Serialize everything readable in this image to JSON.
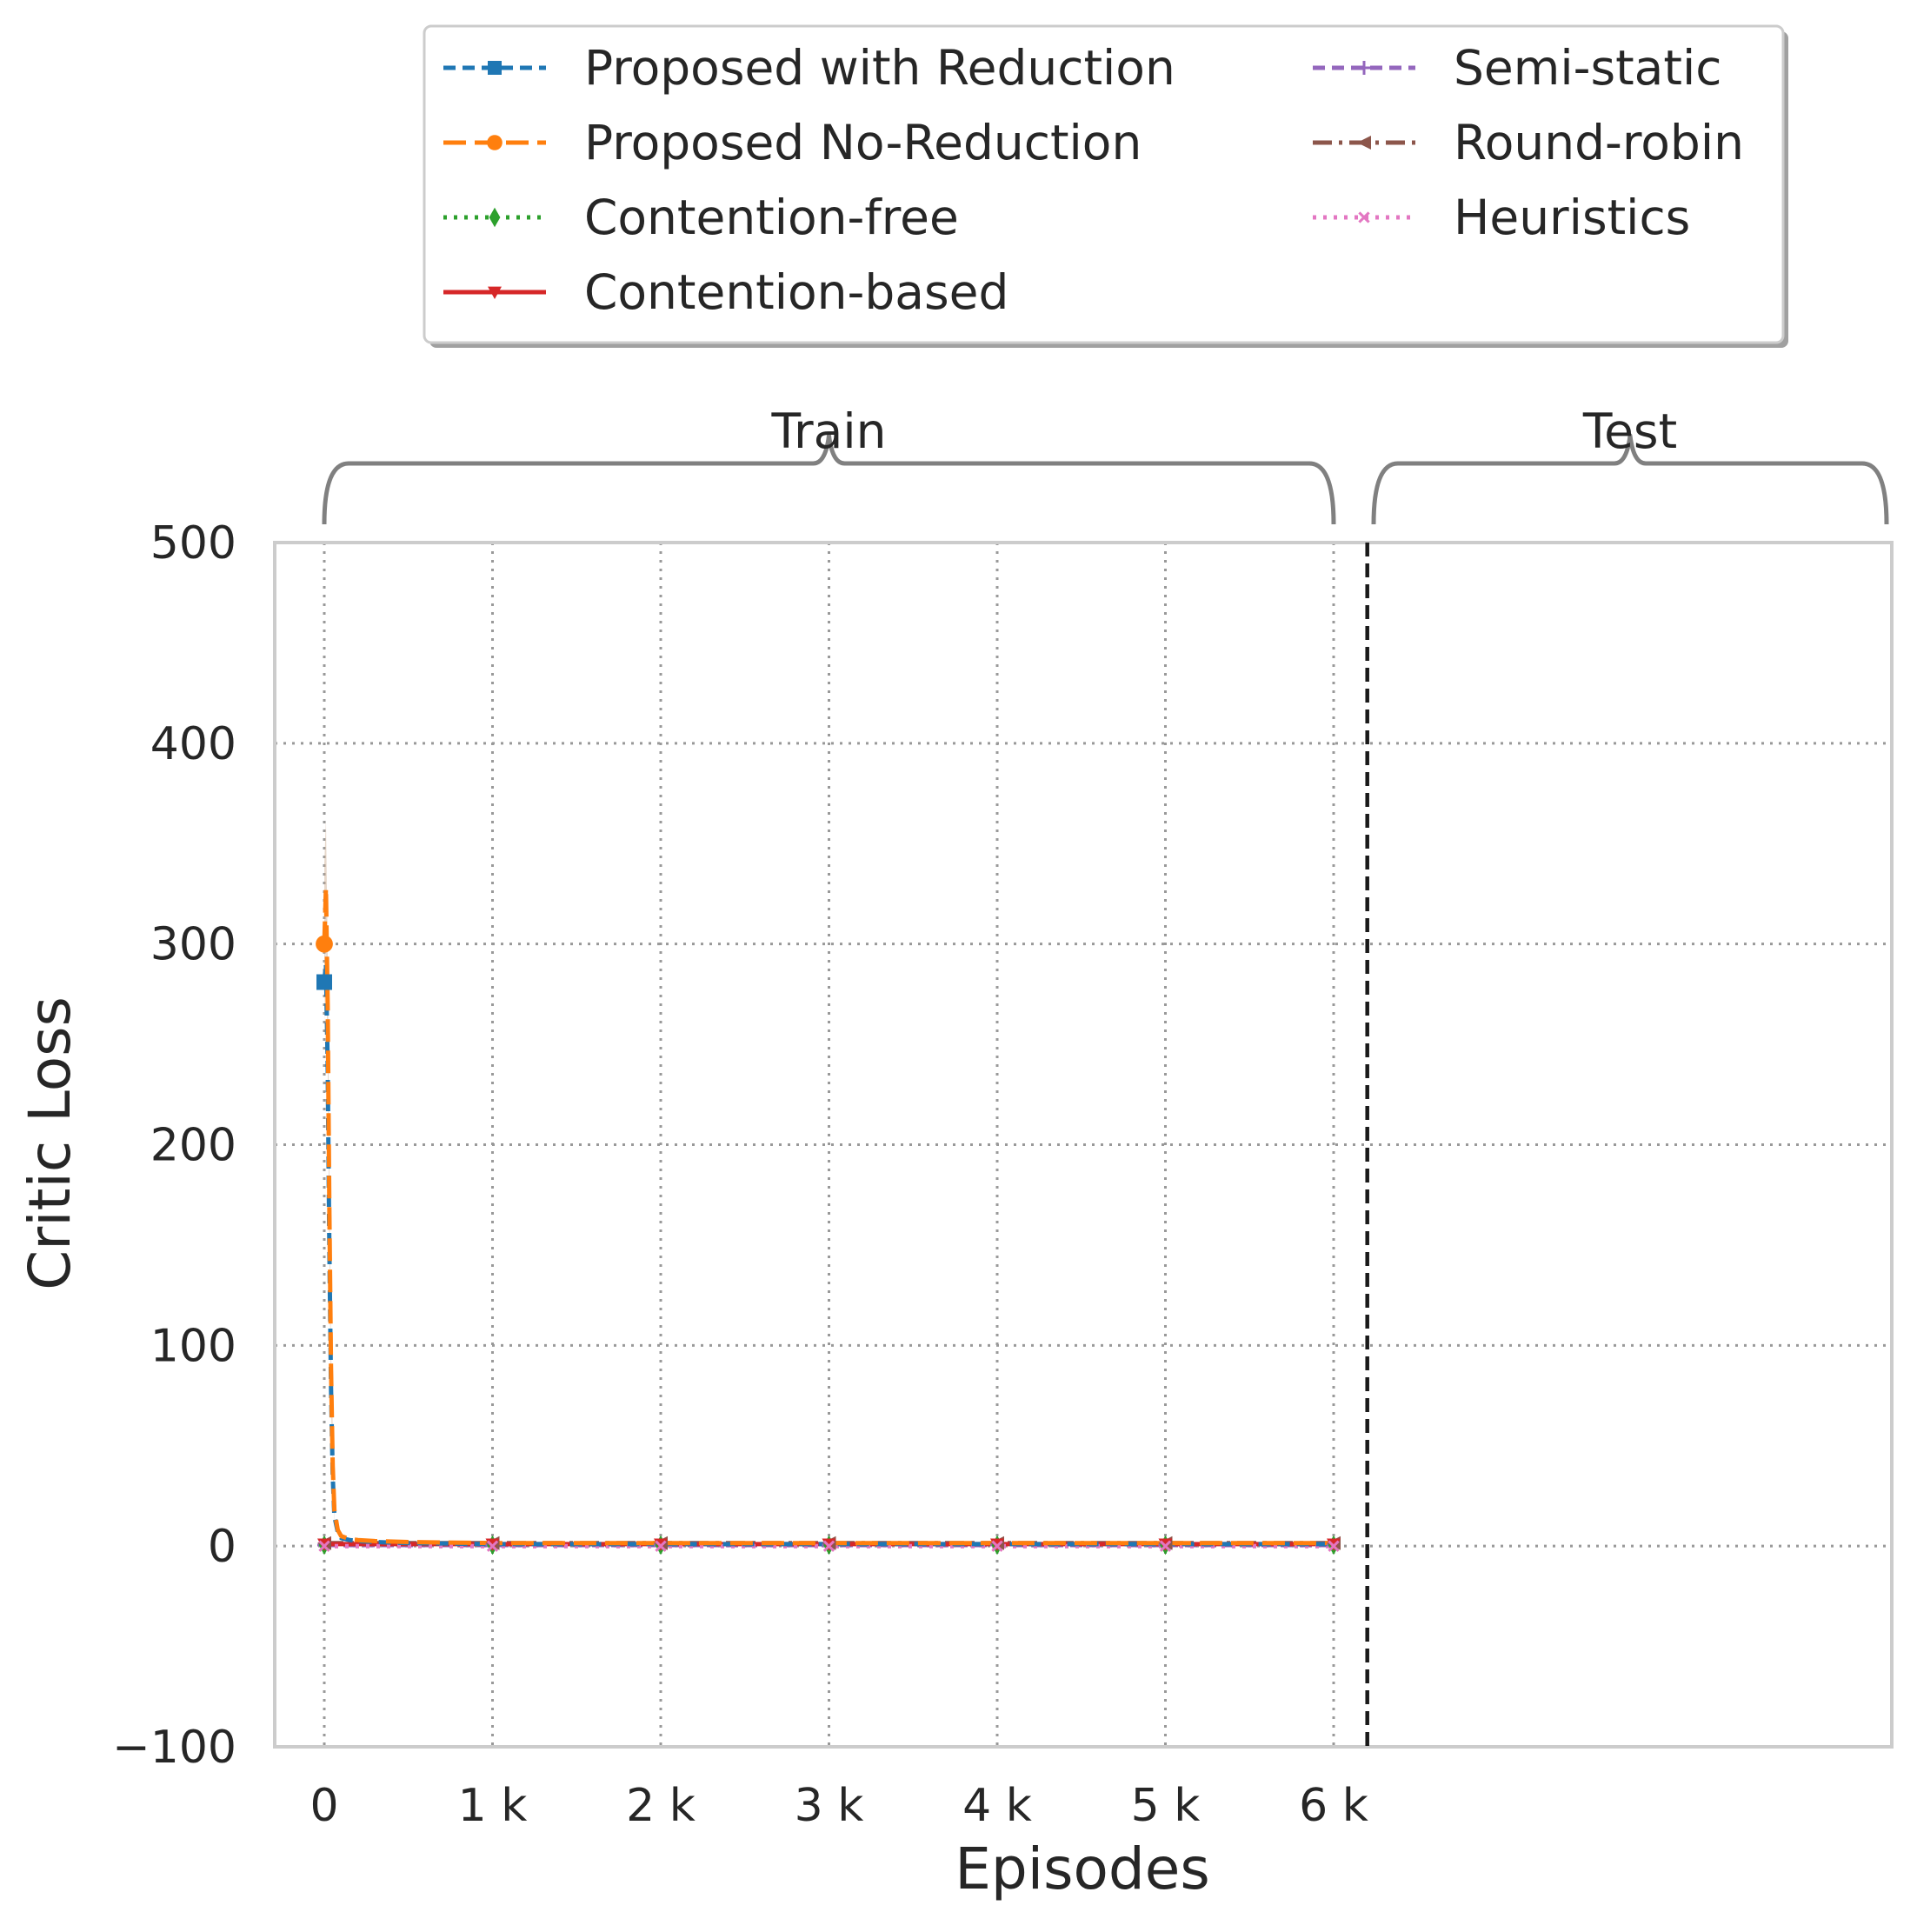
{
  "chart_data": {
    "type": "line",
    "xlabel": "Episodes",
    "ylabel": "Critic Loss",
    "xlim": [
      -300,
      9300
    ],
    "ylim": [
      -100,
      500
    ],
    "x_ticks": [
      {
        "value": 0,
        "label": "0"
      },
      {
        "value": 1000,
        "label": "1 k"
      },
      {
        "value": 2000,
        "label": "2 k"
      },
      {
        "value": 3000,
        "label": "3 k"
      },
      {
        "value": 4000,
        "label": "4 k"
      },
      {
        "value": 5000,
        "label": "5 k"
      },
      {
        "value": 6000,
        "label": "6 k"
      }
    ],
    "y_ticks": [
      {
        "value": 500,
        "label": "500"
      },
      {
        "value": 400,
        "label": "400"
      },
      {
        "value": 300,
        "label": "300"
      },
      {
        "value": 200,
        "label": "200"
      },
      {
        "value": 100,
        "label": "100"
      },
      {
        "value": 0,
        "label": "0"
      },
      {
        "value": -100,
        "label": "−100"
      }
    ],
    "grid": true,
    "legend_position": "top",
    "train_test_split": 6200,
    "sections": [
      {
        "label": "Train",
        "from": 0,
        "to": 6000
      },
      {
        "label": "Test",
        "from": 6250,
        "to": 9300
      }
    ],
    "series": [
      {
        "name": "Proposed with Reduction",
        "color": "#1f77b4",
        "dash": "dashed",
        "marker": "square",
        "x": [
          0,
          10,
          20,
          30,
          40,
          50,
          60,
          80,
          100,
          150,
          200,
          300,
          500,
          1000,
          2000,
          3000,
          4000,
          5000,
          6000
        ],
        "y": [
          281,
          290,
          240,
          150,
          80,
          35,
          15,
          7,
          4,
          3,
          2.5,
          2,
          1.5,
          1,
          1,
          1,
          1,
          1,
          1
        ]
      },
      {
        "name": "Proposed No-Reduction",
        "color": "#ff7f0e",
        "dash": "longdash",
        "marker": "circle",
        "x": [
          0,
          10,
          20,
          30,
          40,
          50,
          60,
          80,
          100,
          150,
          200,
          300,
          500,
          1000,
          2000,
          3000,
          4000,
          5000,
          6000
        ],
        "y": [
          300,
          328,
          270,
          170,
          90,
          40,
          18,
          8,
          5,
          3.5,
          3,
          2.5,
          2,
          1.5,
          1.5,
          1.5,
          1.5,
          1.5,
          1.5
        ]
      },
      {
        "name": "Contention-free",
        "color": "#2ca02c",
        "dash": "dotted",
        "marker": "diamond",
        "x": [
          0,
          1000,
          2000,
          3000,
          4000,
          5000,
          6000
        ],
        "y": [
          0.5,
          0.5,
          0.5,
          0.5,
          0.5,
          0.5,
          0.5
        ]
      },
      {
        "name": "Contention-based",
        "color": "#d62728",
        "dash": "solid",
        "marker": "triangle-down",
        "x": [
          0,
          1000,
          2000,
          3000,
          4000,
          5000,
          6000
        ],
        "y": [
          1,
          1,
          1,
          1,
          1,
          1,
          1
        ]
      },
      {
        "name": "Semi-static",
        "color": "#9467bd",
        "dash": "dashed",
        "marker": "plus",
        "x": [
          0,
          1000,
          2000,
          3000,
          4000,
          5000,
          6000
        ],
        "y": [
          0.5,
          0.5,
          0.5,
          0.5,
          0.5,
          0.5,
          0.5
        ]
      },
      {
        "name": "Round-robin",
        "color": "#8c564b",
        "dash": "dashdot",
        "marker": "triangle-left",
        "x": [
          0,
          1000,
          2000,
          3000,
          4000,
          5000,
          6000
        ],
        "y": [
          1.5,
          1.5,
          1.5,
          1.5,
          1.5,
          1.5,
          1.5
        ]
      },
      {
        "name": "Heuristics",
        "color": "#e377c2",
        "dash": "dotted",
        "marker": "x",
        "x": [
          0,
          1000,
          2000,
          3000,
          4000,
          5000,
          6000
        ],
        "y": [
          0,
          0,
          0,
          0,
          0,
          0,
          0
        ]
      }
    ],
    "error_band": {
      "series": "Round-robin",
      "color": "#c9a98c",
      "x": [
        0,
        10,
        20,
        30,
        40,
        60
      ],
      "upper": [
        340,
        362,
        300,
        190,
        100,
        20
      ],
      "lower": [
        260,
        300,
        240,
        150,
        70,
        10
      ]
    }
  }
}
